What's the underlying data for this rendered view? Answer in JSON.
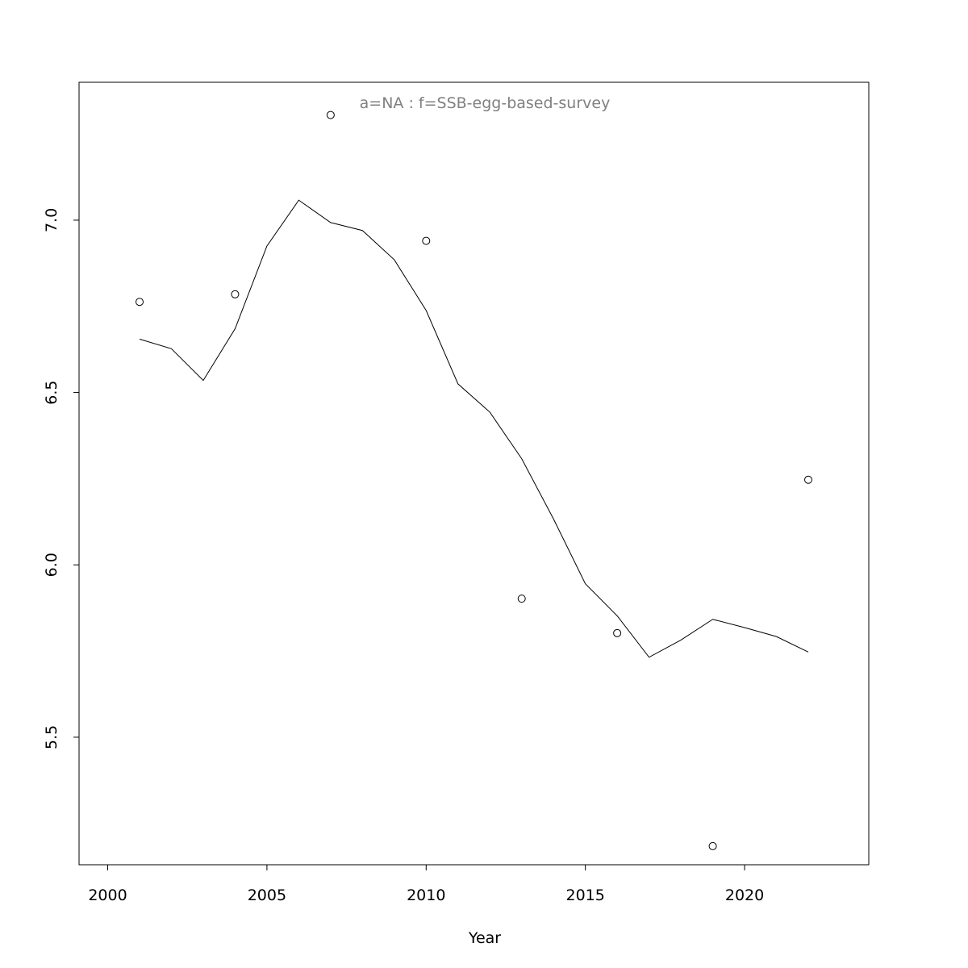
{
  "chart_data": {
    "type": "line",
    "title": "a=NA  :  f=SSB-egg-based-survey",
    "title_color": "#808080",
    "xlabel": "Year",
    "ylabel": "",
    "xlim": [
      1999.1,
      2023.9
    ],
    "ylim": [
      5.13,
      7.4
    ],
    "x_ticks": [
      2000,
      2005,
      2010,
      2015,
      2020
    ],
    "x_tick_labels": [
      "2000",
      "2005",
      "2010",
      "2015",
      "2020"
    ],
    "y_ticks": [
      5.5,
      6.0,
      6.5,
      7.0
    ],
    "y_tick_labels": [
      "5.5",
      "6.0",
      "6.5",
      "7.0"
    ],
    "grid": false,
    "series": [
      {
        "style": "line",
        "x": [
          2001,
          2002,
          2003,
          2004,
          2005,
          2006,
          2007,
          2008,
          2009,
          2010,
          2011,
          2012,
          2013,
          2014,
          2015,
          2016,
          2017,
          2018,
          2019,
          2020,
          2021,
          2022
        ],
        "y": [
          6.655,
          6.627,
          6.535,
          6.685,
          6.925,
          7.058,
          6.993,
          6.97,
          6.885,
          6.738,
          6.525,
          6.443,
          6.308,
          6.133,
          5.945,
          5.852,
          5.732,
          5.782,
          5.842,
          5.818,
          5.792,
          5.747
        ]
      },
      {
        "style": "points",
        "x": [
          2001,
          2004,
          2007,
          2010,
          2013,
          2016,
          2019,
          2022
        ],
        "y": [
          6.763,
          6.785,
          7.305,
          6.94,
          5.902,
          5.802,
          5.184,
          6.247
        ]
      }
    ]
  }
}
